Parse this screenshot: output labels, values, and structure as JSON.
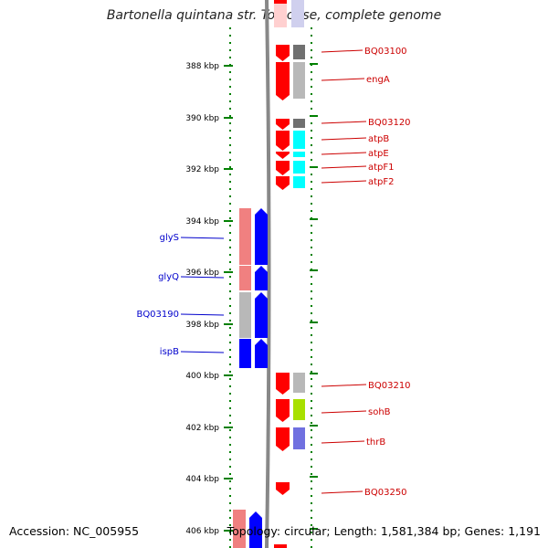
{
  "title": "Bartonella quintana str. Toulouse, complete genome",
  "footer": {
    "accession": "Accession: NC_005955",
    "summary": "Topology: circular; Length: 1,581,384 bp; Genes: 1,191"
  },
  "colors": {
    "forward_gene": "#ff0000",
    "reverse_gene": "#0000ff",
    "forward_label": "#cc0000",
    "reverse_label": "#0000cc",
    "tick": "#008000",
    "backbone": "#888888"
  },
  "scale": {
    "ticks": [
      "388 kbp",
      "390 kbp",
      "392 kbp",
      "394 kbp",
      "396 kbp",
      "398 kbp",
      "400 kbp",
      "402 kbp",
      "404 kbp",
      "406 kbp"
    ]
  },
  "right_genes": [
    {
      "label": "BQ03100",
      "color2": "#707070"
    },
    {
      "label": "engA",
      "color2": "#b8b8b8"
    },
    {
      "label": "BQ03120",
      "color2": "#707070"
    },
    {
      "label": "atpB",
      "color2": "#00ffff"
    },
    {
      "label": "atpE",
      "color2": "#00ffff"
    },
    {
      "label": "atpF1",
      "color2": "#00ffff"
    },
    {
      "label": "atpF2",
      "color2": "#00ffff"
    },
    {
      "label": "BQ03210",
      "color2": "#b8b8b8"
    },
    {
      "label": "sohB",
      "color2": "#a8e000"
    },
    {
      "label": "thrB",
      "color2": "#7070e0"
    },
    {
      "label": "BQ03250",
      "color2": ""
    }
  ],
  "left_genes": [
    {
      "label": "glyS",
      "color2": "#f08080"
    },
    {
      "label": "glyQ",
      "color2": "#f08080"
    },
    {
      "label": "BQ03190",
      "color2": "#b8b8b8"
    },
    {
      "label": "ispB",
      "color2": "#0000ff"
    }
  ]
}
